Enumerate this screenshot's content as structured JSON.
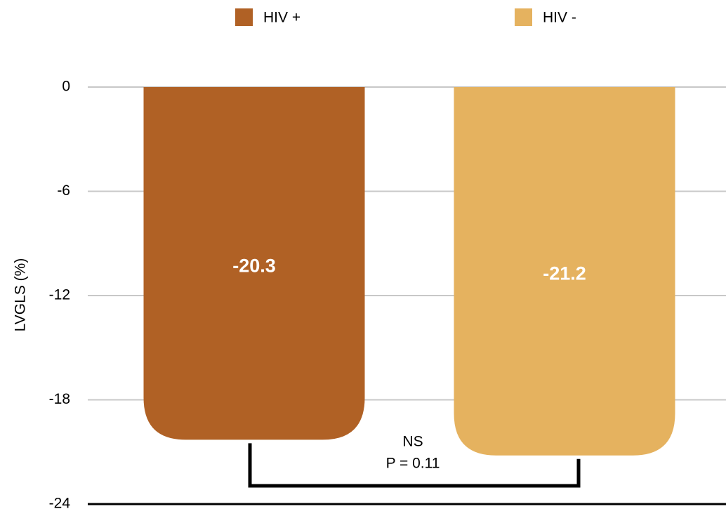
{
  "chart_data": {
    "type": "bar",
    "y_label": "LVGLS (%)",
    "categories": [
      null
    ],
    "series": [
      {
        "name": "HIV +",
        "color": "#b06125",
        "values": [
          -20.3
        ]
      },
      {
        "name": "HIV -",
        "color": "#e5b25f",
        "values": [
          -21.2
        ]
      }
    ],
    "ylim": [
      -24,
      0
    ],
    "yticks": [
      0,
      -6,
      -12,
      -18,
      -24
    ],
    "grid": true,
    "legend": "top",
    "annotations": [
      "NS",
      "P = 0.11"
    ]
  }
}
